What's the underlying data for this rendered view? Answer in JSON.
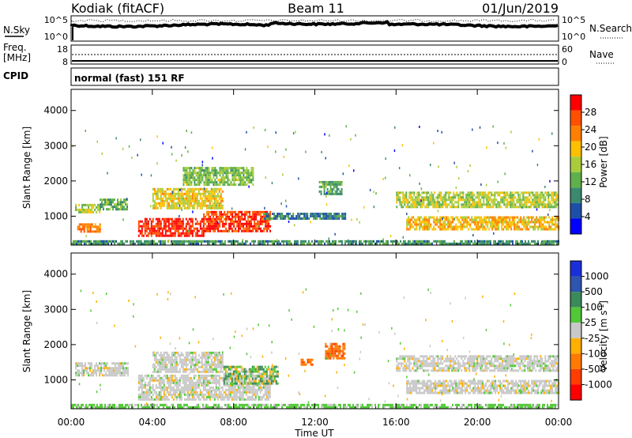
{
  "header": {
    "station": "Kodiak (fitACF)",
    "beam": "Beam 11",
    "date": "01/Jun/2019"
  },
  "nsky_panel": {
    "left_label": "N.Sky",
    "right_label": "N.Search",
    "left_ticks": [
      "10^5",
      "10^0"
    ],
    "right_ticks": [
      "10^5",
      "10^0"
    ]
  },
  "freq_panel": {
    "left_label_1": "Freq.",
    "left_label_2": "[MHz]",
    "right_label": "Nave",
    "left_ticks": [
      "18",
      "8"
    ],
    "right_ticks": [
      "60",
      "0"
    ]
  },
  "cpid": {
    "label": "CPID",
    "value": "normal (fast) 151 RF"
  },
  "colors": {
    "power_scale": [
      "#0000ff",
      "#1e4fa8",
      "#3a8a6e",
      "#5fb04a",
      "#a8cc3c",
      "#ffc000",
      "#ff8000",
      "#ff5000",
      "#ff0000"
    ],
    "velocity_scale": [
      "#1b2fd8",
      "#2e55b0",
      "#3a8a5a",
      "#52c837",
      "#c8c8c8",
      "#ffb000",
      "#ff7a00",
      "#ff3d00",
      "#ff0000"
    ]
  },
  "chart_data": [
    {
      "type": "heatmap",
      "title": "",
      "xlabel": "Time UT",
      "ylabel": "Slant Range [km]",
      "x_ticks": [
        "00:00",
        "04:00",
        "08:00",
        "12:00",
        "16:00",
        "20:00",
        "00:00"
      ],
      "y_ticks": [
        "1000",
        "2000",
        "3000",
        "4000"
      ],
      "y_tick_values": [
        1000,
        2000,
        3000,
        4000
      ],
      "ylim": [
        180,
        4600
      ],
      "xlim_hours": [
        0,
        24
      ],
      "colorbar_label": "Power [dB]",
      "colorbar_ticks": [
        "4",
        "8",
        "12",
        "16",
        "20",
        "24",
        "28"
      ],
      "colorbar_range": [
        0,
        32
      ],
      "regions": [
        {
          "t0": 0.2,
          "t1": 1.4,
          "r0": 1100,
          "r1": 1350,
          "level": 16
        },
        {
          "t0": 1.4,
          "t1": 2.8,
          "r0": 1200,
          "r1": 1500,
          "level": 12
        },
        {
          "t0": 0.3,
          "t1": 1.4,
          "r0": 550,
          "r1": 800,
          "level": 24
        },
        {
          "t0": 3.3,
          "t1": 6.5,
          "r0": 450,
          "r1": 950,
          "level": 29
        },
        {
          "t0": 6.5,
          "t1": 9.8,
          "r0": 550,
          "r1": 1150,
          "level": 28
        },
        {
          "t0": 4.0,
          "t1": 7.5,
          "r0": 1200,
          "r1": 1800,
          "level": 18
        },
        {
          "t0": 5.5,
          "t1": 9.0,
          "r0": 1900,
          "r1": 2400,
          "level": 14
        },
        {
          "t0": 9.5,
          "t1": 13.5,
          "r0": 950,
          "r1": 1100,
          "level": 8
        },
        {
          "t0": 12.2,
          "t1": 13.3,
          "r0": 1650,
          "r1": 2000,
          "level": 12
        },
        {
          "t0": 16.0,
          "t1": 24.0,
          "r0": 1250,
          "r1": 1700,
          "level": 16
        },
        {
          "t0": 16.5,
          "t1": 24.0,
          "r0": 600,
          "r1": 1000,
          "level": 20
        },
        {
          "t0": 0.0,
          "t1": 24.0,
          "r0": 200,
          "r1": 320,
          "level": 10
        }
      ]
    },
    {
      "type": "heatmap",
      "title": "",
      "xlabel": "Time UT",
      "ylabel": "Slant Range [km]",
      "x_ticks": [
        "00:00",
        "04:00",
        "08:00",
        "12:00",
        "16:00",
        "20:00",
        "00:00"
      ],
      "y_ticks": [
        "1000",
        "2000",
        "3000",
        "4000"
      ],
      "y_tick_values": [
        1000,
        2000,
        3000,
        4000
      ],
      "ylim": [
        180,
        4600
      ],
      "xlim_hours": [
        0,
        24
      ],
      "colorbar_label": "Velocity [m s^-1]",
      "colorbar_ticks": [
        "1000",
        "500",
        "100",
        "25",
        "-25",
        "-100",
        "-500",
        "-1000"
      ],
      "regions": [
        {
          "t0": 0.2,
          "t1": 2.8,
          "r0": 1100,
          "r1": 1500,
          "level": 0
        },
        {
          "t0": 3.3,
          "t1": 9.8,
          "r0": 450,
          "r1": 1150,
          "level": 0
        },
        {
          "t0": 4.0,
          "t1": 7.5,
          "r0": 1200,
          "r1": 1800,
          "level": 0
        },
        {
          "t0": 7.5,
          "t1": 10.2,
          "r0": 900,
          "r1": 1400,
          "level": 60
        },
        {
          "t0": 11.3,
          "t1": 11.9,
          "r0": 1400,
          "r1": 1600,
          "level": -400
        },
        {
          "t0": 12.5,
          "t1": 13.5,
          "r0": 1600,
          "r1": 2050,
          "level": -450
        },
        {
          "t0": 16.0,
          "t1": 24.0,
          "r0": 1250,
          "r1": 1700,
          "level": 0
        },
        {
          "t0": 16.5,
          "t1": 24.0,
          "r0": 600,
          "r1": 1000,
          "level": 0
        },
        {
          "t0": 0.0,
          "t1": 24.0,
          "r0": 200,
          "r1": 320,
          "level": 40
        }
      ]
    }
  ]
}
